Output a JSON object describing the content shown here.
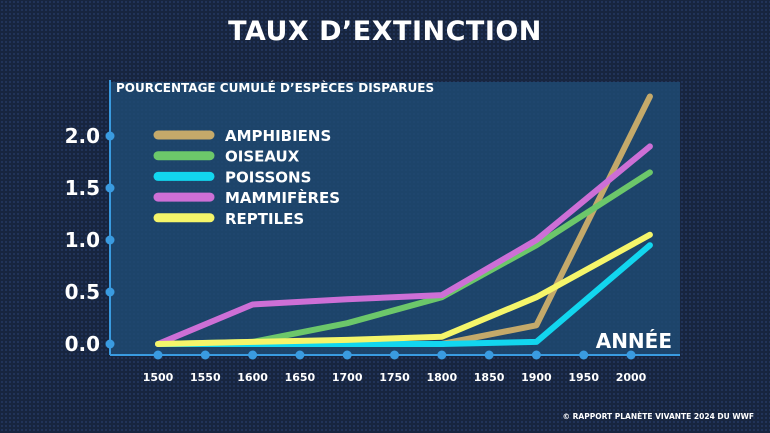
{
  "chart_data": {
    "type": "line",
    "title": "TAUX D’EXTINCTION",
    "ylabel": "POURCENTAGE CUMULÉ D’ESPÈCES DISPARUES",
    "xlabel": "ANNÉE",
    "x": [
      1500,
      1600,
      1700,
      1800,
      1900,
      2020
    ],
    "x_ticks": [
      "1500",
      "1550",
      "1600",
      "1650",
      "1700",
      "1750",
      "1800",
      "1850",
      "1900",
      "1950",
      "2000"
    ],
    "y_ticks": [
      "0.0",
      "0.5",
      "1.0",
      "1.5",
      "2.0"
    ],
    "xlim": [
      1500,
      2020
    ],
    "ylim": [
      0,
      2.5
    ],
    "legend_position": "top-left",
    "series": [
      {
        "name": "AMPHIBIENS",
        "color": "#c4a96a",
        "values": [
          0,
          0,
          0,
          0,
          0.18,
          2.38
        ]
      },
      {
        "name": "OISEAUX",
        "color": "#6cc76a",
        "values": [
          0,
          0.02,
          0.2,
          0.45,
          0.95,
          1.65
        ]
      },
      {
        "name": "POISSONS",
        "color": "#12d6ef",
        "values": [
          0,
          0,
          0,
          0,
          0.02,
          0.95
        ]
      },
      {
        "name": "MAMMIFÈRES",
        "color": "#cd6fd6",
        "values": [
          0,
          0.38,
          0.43,
          0.47,
          1.0,
          1.9
        ]
      },
      {
        "name": "REPTILES",
        "color": "#f5f56a",
        "values": [
          0,
          0.02,
          0.04,
          0.07,
          0.45,
          1.05
        ]
      }
    ]
  },
  "credit": "© RAPPORT PLANÈTE VIVANTE 2024 DU WWF"
}
